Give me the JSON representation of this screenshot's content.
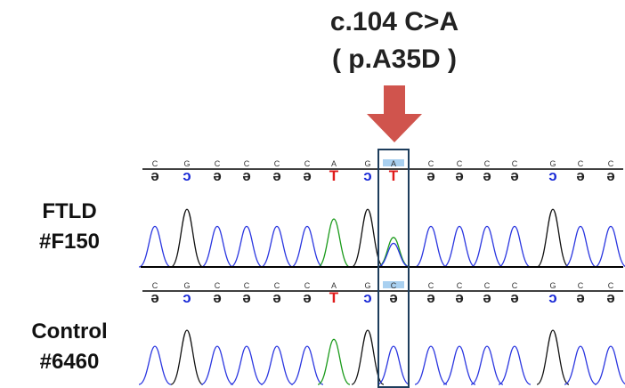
{
  "header": {
    "title": "c.104 C>A",
    "subtitle": "( p.A35D )"
  },
  "panels": [
    {
      "label": [
        "FTLD",
        "#F150"
      ],
      "bases": [
        "C",
        "G",
        "C",
        "C",
        "C",
        "C",
        "A",
        "G",
        "A",
        "C",
        "C",
        "C",
        "C",
        "G",
        "C",
        "C"
      ],
      "calls": [
        "ə",
        "ɔ",
        "ə",
        "ə",
        "ə",
        "ə",
        "T",
        "ɔ",
        "T",
        "ə",
        "ə",
        "ə",
        "ə",
        "ɔ",
        "ə",
        "ə"
      ]
    },
    {
      "label": [
        "Control",
        "#6460"
      ],
      "bases": [
        "C",
        "G",
        "C",
        "C",
        "C",
        "C",
        "A",
        "G",
        "C",
        "C",
        "C",
        "C",
        "C",
        "G",
        "C",
        "C"
      ],
      "calls": [
        "ə",
        "ɔ",
        "ə",
        "ə",
        "ə",
        "ə",
        "T",
        "ɔ",
        "ə",
        "ə",
        "ə",
        "ə",
        "ə",
        "ɔ",
        "ə",
        "ə"
      ]
    }
  ]
}
